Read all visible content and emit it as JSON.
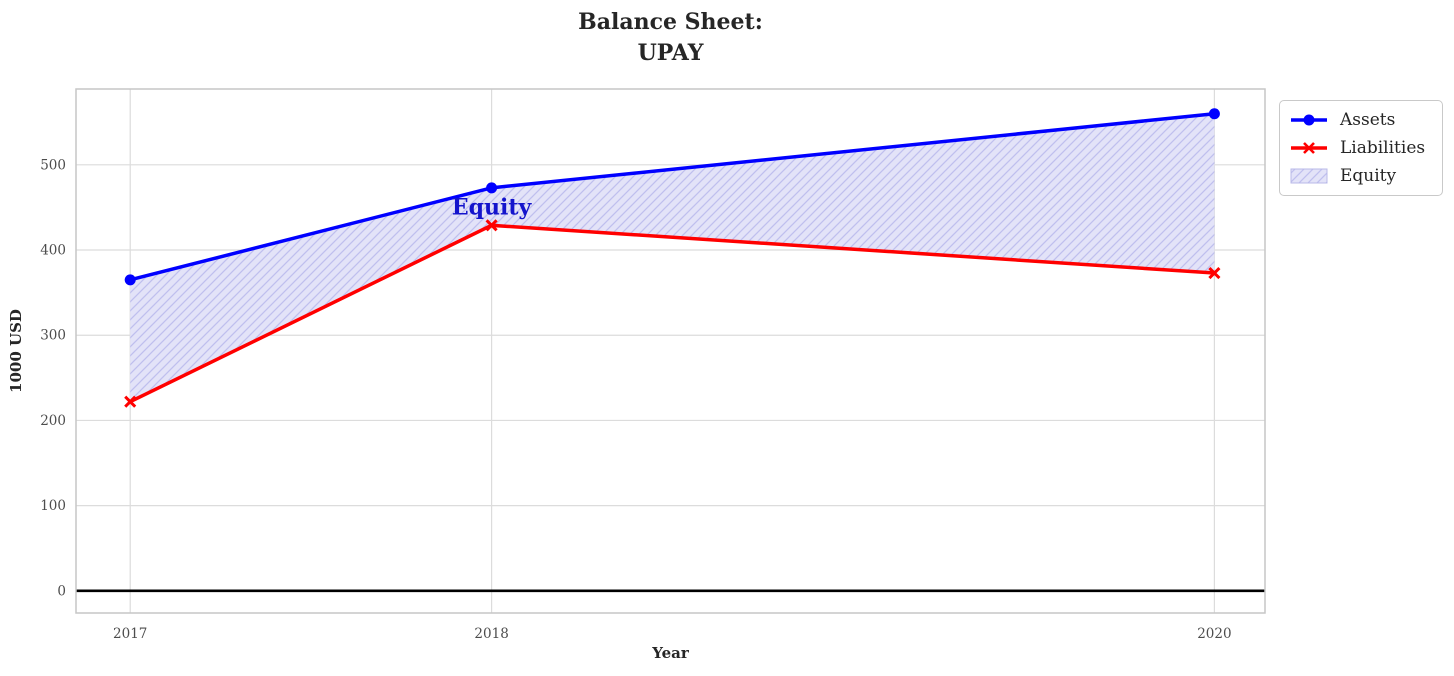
{
  "chart_data": {
    "type": "line",
    "title": "Balance Sheet:\nUPAY",
    "title_lines": [
      "Balance Sheet:",
      "UPAY"
    ],
    "xlabel": "Year",
    "ylabel": "1000 USD",
    "x": [
      2017,
      2018,
      2020
    ],
    "x_tick_labels": [
      "2017",
      "2018",
      "2020"
    ],
    "y_ticks": [
      0,
      100,
      200,
      300,
      400,
      500
    ],
    "xlim": [
      2016.85,
      2020.14
    ],
    "ylim": [
      -26,
      589
    ],
    "grid": true,
    "series": [
      {
        "name": "Assets",
        "values": [
          365,
          473,
          560
        ],
        "color": "#0000ff",
        "marker": "circle",
        "line_width": 3.5
      },
      {
        "name": "Liabilities",
        "values": [
          222,
          429,
          373
        ],
        "color": "#ff0000",
        "marker": "x",
        "line_width": 3.5
      }
    ],
    "area": {
      "name": "Equity",
      "between": [
        "Assets",
        "Liabilities"
      ],
      "face_color": "#e3e3f8",
      "hatch_color": "#bfbfee",
      "hatch": "//"
    },
    "annotation": {
      "text": "Equity",
      "x": 2018,
      "y": 450,
      "color": "#1414cc",
      "font_size": 22
    },
    "zero_line": {
      "y": 0,
      "color": "#000000",
      "width": 2.6
    },
    "legend": {
      "position": "outside-upper-right",
      "items": [
        {
          "label": "Assets"
        },
        {
          "label": "Liabilities"
        },
        {
          "label": "Equity"
        }
      ]
    },
    "style": {
      "grid_color": "#dcdcdc",
      "spine_color": "#c6c6c6",
      "tick_label_color": "#4d4d4d",
      "text_color": "#262626",
      "background": "#ffffff"
    }
  }
}
